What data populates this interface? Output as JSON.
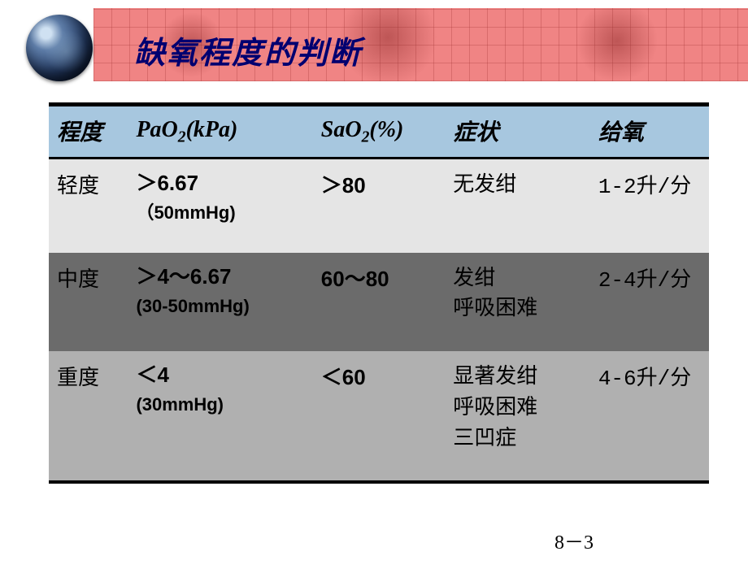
{
  "title": "缺氧程度的判断",
  "page_number": "8－3",
  "colors": {
    "header_band": "#f08484",
    "map_grid": "#aa3c3c",
    "title_text": "#000070",
    "thead_bg": "#a7c7df",
    "row_mild_bg": "#e5e5e5",
    "row_moderate_bg": "#6b6b6b",
    "row_severe_bg": "#b0b0b0",
    "border": "#000000"
  },
  "table": {
    "columns": {
      "degree": "程度",
      "pao2_prefix": "PaO",
      "pao2_sub": "2",
      "pao2_suffix": "(kPa)",
      "sao2_prefix": "SaO",
      "sao2_sub": "2",
      "sao2_suffix": "(%)",
      "symptoms": "症状",
      "oxygen": "给氧"
    },
    "rows": [
      {
        "degree": "轻度",
        "pao2_main": "＞6.67",
        "pao2_paren": "（50mmHg)",
        "sao2": "＞80",
        "symptoms": "无发绀",
        "oxygen": "1-2升/分"
      },
      {
        "degree": "中度",
        "pao2_main": "＞4～6.67",
        "pao2_paren": "(30-50mmHg)",
        "sao2": "60～80",
        "symptoms": "发绀\n呼吸困难",
        "oxygen": "2-4升/分"
      },
      {
        "degree": "重度",
        "pao2_main": "＜4",
        "pao2_paren": "(30mmHg)",
        "sao2": "＜60",
        "symptoms": "显著发绀\n呼吸困难\n三凹症",
        "oxygen": "4-6升/分"
      }
    ]
  }
}
